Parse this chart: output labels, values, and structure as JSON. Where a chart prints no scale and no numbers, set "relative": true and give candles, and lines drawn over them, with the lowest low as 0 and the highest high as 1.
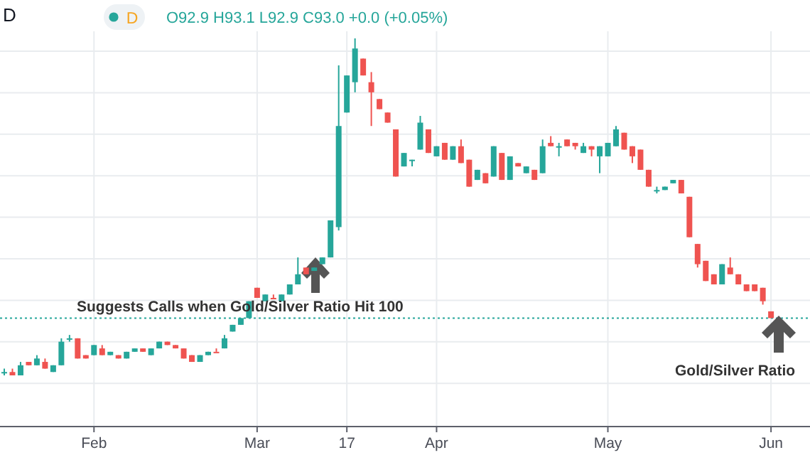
{
  "chart_data": {
    "type": "candlestick",
    "title": "D",
    "subtitle": "O92.9 H93.1 L92.9 C93.0 +0.0 (+0.05%)",
    "relative": true,
    "grid": true,
    "categories": [
      null,
      null,
      null,
      null,
      null,
      null,
      null,
      null,
      null,
      null,
      null,
      "Feb",
      null,
      null,
      null,
      null,
      null,
      null,
      null,
      null,
      null,
      null,
      null,
      null,
      null,
      null,
      null,
      null,
      null,
      null,
      null,
      "Mar",
      null,
      null,
      null,
      null,
      null,
      null,
      null,
      null,
      null,
      null,
      "17",
      null,
      null,
      null,
      null,
      null,
      null,
      null,
      null,
      null,
      null,
      "Apr",
      null,
      null,
      null,
      null,
      null,
      null,
      null,
      null,
      null,
      null,
      null,
      null,
      null,
      null,
      null,
      null,
      null,
      null,
      null,
      null,
      "May",
      null,
      null,
      null,
      null,
      null,
      null,
      null,
      null,
      null,
      null,
      null,
      null,
      null,
      null,
      null,
      null,
      null,
      null,
      null,
      "Jun"
    ],
    "ohlc": [
      [
        0.01,
        0.02,
        0,
        0.01
      ],
      [
        0.01,
        0.02,
        0,
        0.0
      ],
      [
        0.0,
        0.04,
        0.0,
        0.03
      ],
      [
        0.04,
        0.04,
        0.03,
        0.03
      ],
      [
        0.03,
        0.06,
        0.03,
        0.05
      ],
      [
        0.04,
        0.05,
        0.02,
        0.02
      ],
      [
        0.01,
        0.03,
        0.01,
        0.03
      ],
      [
        0.03,
        0.11,
        0.03,
        0.1
      ],
      [
        0.11,
        0.12,
        0.1,
        0.11
      ],
      [
        0.11,
        0.11,
        0.05,
        0.05
      ],
      [
        0.06,
        0.06,
        0.05,
        0.05
      ],
      [
        0.06,
        0.09,
        0.06,
        0.09
      ],
      [
        0.08,
        0.09,
        0.06,
        0.06
      ],
      [
        0.06,
        0.07,
        0.06,
        0.07
      ],
      [
        0.06,
        0.06,
        0.05,
        0.05
      ],
      [
        0.05,
        0.07,
        0.05,
        0.07
      ],
      [
        0.07,
        0.08,
        0.07,
        0.08
      ],
      [
        0.08,
        0.08,
        0.07,
        0.07
      ],
      [
        0.06,
        0.08,
        0.06,
        0.08
      ],
      [
        0.08,
        0.1,
        0.08,
        0.1
      ],
      [
        0.1,
        0.1,
        0.09,
        0.09
      ],
      [
        0.09,
        0.09,
        0.08,
        0.08
      ],
      [
        0.08,
        0.08,
        0.05,
        0.05
      ],
      [
        0.06,
        0.06,
        0.04,
        0.04
      ],
      [
        0.04,
        0.06,
        0.04,
        0.06
      ],
      [
        0.06,
        0.07,
        0.06,
        0.07
      ],
      [
        0.07,
        0.08,
        0.07,
        0.07
      ],
      [
        0.08,
        0.12,
        0.08,
        0.11
      ],
      [
        0.13,
        0.15,
        0.13,
        0.15
      ],
      [
        0.15,
        0.17,
        0.15,
        0.17
      ],
      [
        0.17,
        0.22,
        0.17,
        0.22
      ],
      [
        0.26,
        0.26,
        0.23,
        0.23
      ],
      [
        0.22,
        0.24,
        0.22,
        0.24
      ],
      [
        0.23,
        0.24,
        0.23,
        0.23
      ],
      [
        0.22,
        0.24,
        0.22,
        0.24
      ],
      [
        0.24,
        0.27,
        0.24,
        0.27
      ],
      [
        0.27,
        0.35,
        0.27,
        0.3
      ],
      [
        0.32,
        0.32,
        0.3,
        0.3
      ],
      [
        0.31,
        0.32,
        0.31,
        0.32
      ],
      [
        0.33,
        0.35,
        0.33,
        0.35
      ],
      [
        0.35,
        0.46,
        0.35,
        0.46
      ],
      [
        0.44,
        0.92,
        0.43,
        0.74
      ],
      [
        0.78,
        0.89,
        0.78,
        0.89
      ],
      [
        0.87,
        1.0,
        0.84,
        0.97
      ],
      [
        0.94,
        0.94,
        0.89,
        0.89
      ],
      [
        0.87,
        0.9,
        0.74,
        0.84
      ],
      [
        0.82,
        0.82,
        0.79,
        0.79
      ],
      [
        0.78,
        0.78,
        0.75,
        0.75
      ],
      [
        0.73,
        0.73,
        0.59,
        0.59
      ],
      [
        0.62,
        0.66,
        0.62,
        0.66
      ],
      [
        0.64,
        0.64,
        0.62,
        0.64
      ],
      [
        0.67,
        0.77,
        0.67,
        0.75
      ],
      [
        0.73,
        0.73,
        0.66,
        0.66
      ],
      [
        0.65,
        0.68,
        0.65,
        0.68
      ],
      [
        0.69,
        0.69,
        0.64,
        0.64
      ],
      [
        0.64,
        0.68,
        0.64,
        0.68
      ],
      [
        0.68,
        0.7,
        0.63,
        0.63
      ],
      [
        0.64,
        0.64,
        0.56,
        0.56
      ],
      [
        0.58,
        0.61,
        0.58,
        0.61
      ],
      [
        0.6,
        0.6,
        0.57,
        0.57
      ],
      [
        0.59,
        0.68,
        0.59,
        0.68
      ],
      [
        0.66,
        0.66,
        0.58,
        0.58
      ],
      [
        0.58,
        0.65,
        0.58,
        0.65
      ],
      [
        0.63,
        0.63,
        0.62,
        0.62
      ],
      [
        0.6,
        0.62,
        0.6,
        0.62
      ],
      [
        0.61,
        0.61,
        0.58,
        0.58
      ],
      [
        0.6,
        0.7,
        0.6,
        0.68
      ],
      [
        0.69,
        0.71,
        0.68,
        0.68
      ],
      [
        0.68,
        0.69,
        0.65,
        0.68
      ],
      [
        0.7,
        0.7,
        0.68,
        0.68
      ],
      [
        0.69,
        0.69,
        0.67,
        0.68
      ],
      [
        0.66,
        0.69,
        0.66,
        0.68
      ],
      [
        0.68,
        0.68,
        0.65,
        0.67
      ],
      [
        0.65,
        0.68,
        0.6,
        0.68
      ],
      [
        0.65,
        0.69,
        0.65,
        0.69
      ],
      [
        0.68,
        0.74,
        0.68,
        0.73
      ],
      [
        0.72,
        0.72,
        0.67,
        0.67
      ],
      [
        0.68,
        0.68,
        0.63,
        0.65
      ],
      [
        0.67,
        0.67,
        0.61,
        0.61
      ],
      [
        0.61,
        0.61,
        0.56,
        0.56
      ],
      [
        0.55,
        0.56,
        0.54,
        0.55
      ],
      [
        0.55,
        0.56,
        0.55,
        0.56
      ],
      [
        0.57,
        0.58,
        0.57,
        0.58
      ],
      [
        0.58,
        0.58,
        0.54,
        0.54
      ],
      [
        0.53,
        0.53,
        0.41,
        0.41
      ],
      [
        0.39,
        0.39,
        0.32,
        0.33
      ],
      [
        0.34,
        0.34,
        0.28,
        0.28
      ],
      [
        0.3,
        0.3,
        0.27,
        0.27
      ],
      [
        0.27,
        0.33,
        0.27,
        0.33
      ],
      [
        0.32,
        0.35,
        0.3,
        0.3
      ],
      [
        0.3,
        0.3,
        0.27,
        0.27
      ],
      [
        0.27,
        0.27,
        0.25,
        0.25
      ],
      [
        0.27,
        0.27,
        0.25,
        0.25
      ],
      [
        0.26,
        0.26,
        0.21,
        0.22
      ],
      [
        0.19,
        0.19,
        0.17,
        0.17
      ]
    ],
    "colors": [
      "#26a69a",
      "#ef5350",
      "#26a69a",
      "#ef5350",
      "#26a69a",
      "#ef5350",
      "#26a69a",
      "#26a69a",
      "#26a69a",
      "#ef5350",
      "#ef5350",
      "#26a69a",
      "#ef5350",
      "#26a69a",
      "#ef5350",
      "#26a69a",
      "#26a69a",
      "#ef5350",
      "#26a69a",
      "#26a69a",
      "#ef5350",
      "#ef5350",
      "#ef5350",
      "#ef5350",
      "#26a69a",
      "#26a69a",
      "#ef5350",
      "#26a69a",
      "#26a69a",
      "#26a69a",
      "#26a69a",
      "#ef5350",
      "#26a69a",
      "#ef5350",
      "#26a69a",
      "#26a69a",
      "#26a69a",
      "#ef5350",
      "#26a69a",
      "#26a69a",
      "#26a69a",
      "#26a69a",
      "#26a69a",
      "#26a69a",
      "#ef5350",
      "#ef5350",
      "#ef5350",
      "#ef5350",
      "#ef5350",
      "#26a69a",
      "#26a69a",
      "#26a69a",
      "#ef5350",
      "#26a69a",
      "#ef5350",
      "#26a69a",
      "#ef5350",
      "#ef5350",
      "#26a69a",
      "#ef5350",
      "#26a69a",
      "#ef5350",
      "#26a69a",
      "#ef5350",
      "#26a69a",
      "#ef5350",
      "#26a69a",
      "#ef5350",
      "#26a69a",
      "#ef5350",
      "#ef5350",
      "#26a69a",
      "#ef5350",
      "#26a69a",
      "#26a69a",
      "#26a69a",
      "#ef5350",
      "#ef5350",
      "#ef5350",
      "#ef5350",
      "#26a69a",
      "#26a69a",
      "#26a69a",
      "#ef5350",
      "#ef5350",
      "#ef5350",
      "#ef5350",
      "#ef5350",
      "#26a69a",
      "#ef5350",
      "#ef5350",
      "#ef5350",
      "#ef5350",
      "#ef5350",
      "#ef5350"
    ],
    "ref_lines": [
      {
        "axis": "y",
        "value": 0.17,
        "color": "#26a69a",
        "line_style": "dotted"
      }
    ],
    "annotations": [
      "D",
      "Suggests Calls when Gold/Silver Ratio Hit 100",
      "Gold/Silver Ratio"
    ]
  }
}
